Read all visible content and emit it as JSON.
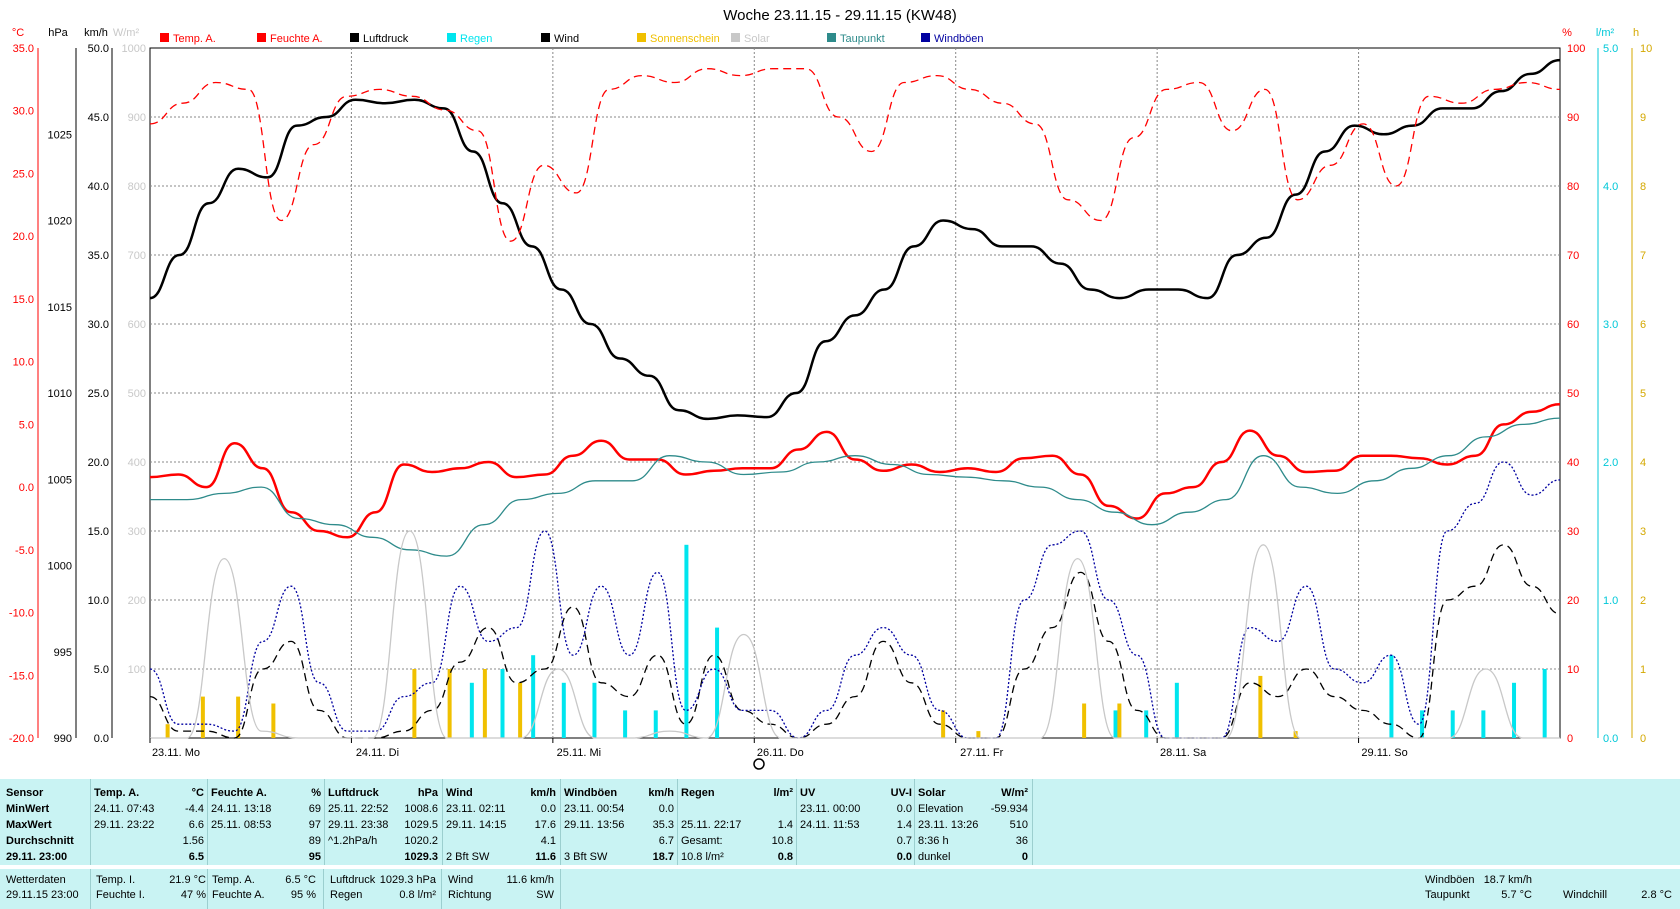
{
  "title": "Woche 23.11.15 - 29.11.15 (KW48)",
  "legend": [
    {
      "label": "Temp. A.",
      "color": "#ff0000"
    },
    {
      "label": "Feuchte A.",
      "color": "#ff0000"
    },
    {
      "label": "Luftdruck",
      "color": "#000000"
    },
    {
      "label": "Regen",
      "color": "#00e5ee"
    },
    {
      "label": "Wind",
      "color": "#000000"
    },
    {
      "label": "Sonnenschein",
      "color": "#f0c000"
    },
    {
      "label": "Solar",
      "color": "#c8c8c8"
    },
    {
      "label": "Taupunkt",
      "color": "#2e8b8b"
    },
    {
      "label": "Windböen",
      "color": "#0000a0"
    }
  ],
  "axis_units": {
    "temp": "°C",
    "pressure": "hPa",
    "wind": "km/h",
    "solar": "W/m²",
    "humidity": "%",
    "rain": "l/m²",
    "sun": "h"
  },
  "chart_data": {
    "type": "line",
    "x_start": "23.11.",
    "x_ticks": [
      "23.11. Mo",
      "24.11. Di",
      "25.11. Mi",
      "26.11. Do",
      "27.11. Fr",
      "28.11. Sa",
      "29.11. So"
    ],
    "axes": {
      "temp": {
        "range": [
          -20,
          35
        ],
        "ticks": [
          "35.0",
          "30.0",
          "25.0",
          "20.0",
          "15.0",
          "10.0",
          "5.0",
          "0.0",
          "-5.0",
          "-10.0",
          "-15.0",
          "-20.0"
        ]
      },
      "pressure": {
        "range": [
          990,
          1030
        ],
        "ticks": [
          "1025",
          "1020",
          "1015",
          "1010",
          "1005",
          "1000",
          "995",
          "990"
        ]
      },
      "wind": {
        "range": [
          0,
          50
        ],
        "ticks": [
          "50.0",
          "45.0",
          "40.0",
          "35.0",
          "30.0",
          "25.0",
          "20.0",
          "15.0",
          "10.0",
          "5.0",
          "0.0"
        ]
      },
      "solar": {
        "range": [
          0,
          1000
        ],
        "ticks": [
          "1000",
          "900",
          "800",
          "700",
          "600",
          "500",
          "400",
          "300",
          "200",
          "100"
        ]
      },
      "humidity": {
        "range": [
          0,
          100
        ],
        "ticks": [
          "100",
          "90",
          "80",
          "70",
          "60",
          "50",
          "40",
          "30",
          "20",
          "10",
          "0"
        ]
      },
      "rain": {
        "range": [
          0,
          5
        ],
        "ticks": [
          "5.0",
          "4.0",
          "3.0",
          "2.0",
          "1.0",
          "0.0"
        ]
      },
      "sun": {
        "range": [
          0,
          10
        ],
        "ticks": [
          "10",
          "9",
          "8",
          "7",
          "6",
          "5",
          "4",
          "3",
          "2",
          "1",
          "0"
        ]
      }
    },
    "series": [
      {
        "name": "Luftdruck",
        "axis": "pressure",
        "color": "#000000",
        "style": "solid",
        "values": [
          1015.5,
          1018,
          1021,
          1023,
          1022.5,
          1025.5,
          1026,
          1027,
          1026.8,
          1027,
          1026.5,
          1024,
          1021,
          1018.5,
          1016,
          1014,
          1012,
          1011,
          1009,
          1008.5,
          1008.7,
          1008.6,
          1010,
          1013,
          1014.5,
          1016,
          1018.5,
          1020,
          1019.5,
          1018.5,
          1018.5,
          1017.5,
          1016,
          1015.5,
          1016,
          1016,
          1015.5,
          1018,
          1019,
          1021.5,
          1024,
          1025.5,
          1025,
          1025.5,
          1026.5,
          1026.5,
          1027.5,
          1028.5,
          1029.3
        ]
      },
      {
        "name": "Temp. A.",
        "axis": "temp",
        "color": "#ff0000",
        "style": "solid",
        "values": [
          0.8,
          1,
          0,
          3.5,
          1.5,
          -2,
          -3.5,
          -4,
          -2,
          1.8,
          1.2,
          1.5,
          2,
          0.8,
          1,
          2.5,
          3.7,
          2.2,
          2.2,
          1,
          1.3,
          1.5,
          1.5,
          3,
          4.4,
          2.2,
          1.3,
          1.8,
          1.2,
          1.5,
          1.2,
          2.3,
          2.5,
          1,
          -1.5,
          -2.5,
          -0.5,
          0,
          2,
          4.5,
          2.5,
          1.2,
          1.3,
          2.5,
          2.5,
          2.3,
          1.8,
          2.5,
          5,
          6,
          6.6
        ]
      },
      {
        "name": "Feuchte A.",
        "axis": "humidity",
        "color": "#ff0000",
        "style": "dashed",
        "values": [
          89,
          92,
          95,
          94,
          75,
          86,
          93,
          94,
          93,
          91,
          88,
          72,
          83,
          79,
          94,
          96,
          95,
          97,
          96,
          97,
          97,
          90,
          85,
          95,
          96,
          94,
          92,
          89,
          78,
          75,
          87,
          94,
          95,
          88,
          94,
          78,
          83,
          89,
          80,
          93,
          92,
          94,
          95,
          94
        ]
      },
      {
        "name": "Taupunkt",
        "axis": "temp",
        "color": "#2e8b8b",
        "style": "solid",
        "values": [
          -1,
          -1,
          -0.5,
          0,
          -2.5,
          -3,
          -4,
          -5,
          -5.5,
          -3,
          -1,
          -0.5,
          0.5,
          0.5,
          2.5,
          2,
          1,
          1.2,
          2,
          2.5,
          1.8,
          1,
          0.8,
          0.5,
          0,
          -1,
          -2,
          -3,
          -2,
          -1,
          2.5,
          0,
          -0.5,
          0.5,
          1.5,
          2.5,
          4,
          5,
          5.5
        ]
      },
      {
        "name": "Wind",
        "axis": "wind",
        "color": "#000000",
        "style": "dashed",
        "values": [
          3,
          0.5,
          0.5,
          0,
          5,
          7,
          2,
          0,
          0,
          0.5,
          2,
          5.5,
          8,
          4,
          5,
          9.5,
          4,
          3,
          6,
          1,
          6,
          2,
          1,
          0,
          1,
          3,
          7,
          4,
          1,
          0,
          0,
          5,
          8,
          12,
          7,
          2,
          0,
          0,
          0,
          4,
          3,
          5,
          3,
          2,
          1,
          0,
          10,
          11,
          14,
          11,
          9
        ]
      },
      {
        "name": "Windböen",
        "axis": "wind",
        "color": "#0000a0",
        "style": "dotted",
        "values": [
          5,
          1,
          1,
          0.5,
          7,
          11,
          4,
          0.5,
          0.5,
          3,
          4,
          11,
          7,
          8,
          15,
          6,
          11,
          6,
          12,
          2,
          5,
          2,
          2,
          0,
          2,
          6,
          8,
          6,
          2,
          0,
          0,
          10,
          14,
          15,
          10,
          6,
          0,
          0,
          0,
          8,
          7,
          11,
          5,
          4,
          6,
          1,
          15,
          17,
          20,
          17.6,
          18.7
        ]
      },
      {
        "name": "Solar",
        "axis": "solar",
        "color": "#c8c8c8",
        "style": "solid",
        "values": [
          0,
          0,
          260,
          10,
          0,
          0,
          0,
          300,
          0,
          0,
          0,
          100,
          0,
          0,
          10,
          0,
          150,
          0,
          0,
          0,
          0,
          0,
          0,
          0,
          0,
          260,
          0,
          0,
          0,
          0,
          280,
          0,
          0,
          0,
          0,
          0,
          100,
          0,
          0
        ]
      }
    ],
    "bars": [
      {
        "name": "Regen",
        "axis": "rain",
        "color": "#00e5ee",
        "values": [
          0,
          0,
          0,
          0,
          0,
          0,
          0,
          0,
          0,
          0,
          0.4,
          0.5,
          0.6,
          0.4,
          0.4,
          0.2,
          0.2,
          1.4,
          0.8,
          0,
          0,
          0,
          0,
          0,
          0,
          0,
          0,
          0,
          0,
          0,
          0,
          0.2,
          0.2,
          0.4,
          0,
          0,
          0,
          0,
          0,
          0,
          0.6,
          0.2,
          0.2,
          0.2,
          0.4,
          0.5
        ]
      },
      {
        "name": "Sonnenschein",
        "axis": "sun",
        "color": "#f0c000",
        "values": [
          0.2,
          0.6,
          0.6,
          0.5,
          0,
          0,
          0,
          1,
          1,
          1,
          0.8,
          0,
          0,
          0,
          0,
          0,
          0,
          0,
          0,
          0,
          0,
          0,
          0.4,
          0.1,
          0,
          0,
          0.5,
          0.5,
          0,
          0,
          0,
          0.9,
          0.1,
          0,
          0,
          0,
          0,
          0,
          0,
          0
        ]
      }
    ]
  },
  "stats": {
    "headers": [
      {
        "name": "Sensor",
        "unit": ""
      },
      {
        "name": "Temp. A.",
        "unit": "°C"
      },
      {
        "name": "Feuchte A.",
        "unit": "%"
      },
      {
        "name": "Luftdruck",
        "unit": "hPa"
      },
      {
        "name": "Wind",
        "unit": "km/h"
      },
      {
        "name": "Windböen",
        "unit": "km/h"
      },
      {
        "name": "Regen",
        "unit": "l/m²"
      },
      {
        "name": "UV",
        "unit": "UV-I"
      },
      {
        "name": "Solar",
        "unit": "W/m²"
      }
    ],
    "row_labels": [
      "MinWert",
      "MaxWert",
      "Durchschnitt",
      "29.11. 23:00"
    ],
    "temp": [
      [
        "24.11.  07:43",
        "-4.4"
      ],
      [
        "29.11.  23:22",
        "6.6"
      ],
      [
        "",
        "1.56"
      ],
      [
        "",
        "6.5"
      ]
    ],
    "hum": [
      [
        "24.11.  13:18",
        "69"
      ],
      [
        "25.11.  08:53",
        "97"
      ],
      [
        "",
        "89"
      ],
      [
        "",
        "95"
      ]
    ],
    "press": [
      [
        "25.11.  22:52",
        "1008.6"
      ],
      [
        "29.11.  23:38",
        "1029.5"
      ],
      [
        "^1.2hPa/h",
        "1020.2"
      ],
      [
        "",
        "1029.3"
      ]
    ],
    "wind": [
      [
        "23.11.  02:11",
        "0.0"
      ],
      [
        "29.11.  14:15",
        "17.6"
      ],
      [
        "",
        "4.1"
      ],
      [
        "2 Bft SW",
        "11.6"
      ]
    ],
    "gust": [
      [
        "23.11.  00:54",
        "0.0"
      ],
      [
        "29.11.  13:56",
        "35.3"
      ],
      [
        "",
        "6.7"
      ],
      [
        "3 Bft SW",
        "18.7"
      ]
    ],
    "rain": [
      [
        "",
        ""
      ],
      [
        "25.11.  22:17",
        "1.4"
      ],
      [
        "Gesamt:",
        "10.8"
      ],
      [
        "10.8 l/m²",
        "0.8"
      ]
    ],
    "uv": [
      [
        "23.11.  00:00",
        "0.0"
      ],
      [
        "24.11.  11:53",
        "1.4"
      ],
      [
        "",
        "0.7"
      ],
      [
        "",
        "0.0"
      ]
    ],
    "solar": [
      [
        "Elevation",
        "-59.934"
      ],
      [
        "23.11.  13:26",
        "510"
      ],
      [
        "8:36 h",
        "36"
      ],
      [
        "dunkel",
        "0"
      ]
    ]
  },
  "footer": {
    "wetterdaten_label": "Wetterdaten",
    "datetime": "29.11.15 23:00",
    "temp_i_label": "Temp. I.",
    "temp_i": "21.9 °C",
    "feuchte_i_label": "Feuchte I.",
    "feuchte_i": "47 %",
    "temp_a_label": "Temp. A.",
    "temp_a": "6.5 °C",
    "feuchte_a_label": "Feuchte A.",
    "feuchte_a": "95 %",
    "luftdruck_label": "Luftdruck",
    "luftdruck": "1029.3 hPa",
    "regen_label": "Regen",
    "regen": "0.8 l/m²",
    "wind_label": "Wind",
    "wind": "11.6 km/h",
    "richtung_label": "Richtung",
    "richtung": "SW",
    "windboeen_label": "Windböen",
    "windboeen": "18.7 km/h",
    "taupunkt_label": "Taupunkt",
    "taupunkt": "5.7 °C",
    "windchill_label": "Windchill",
    "windchill": "2.8 °C"
  }
}
